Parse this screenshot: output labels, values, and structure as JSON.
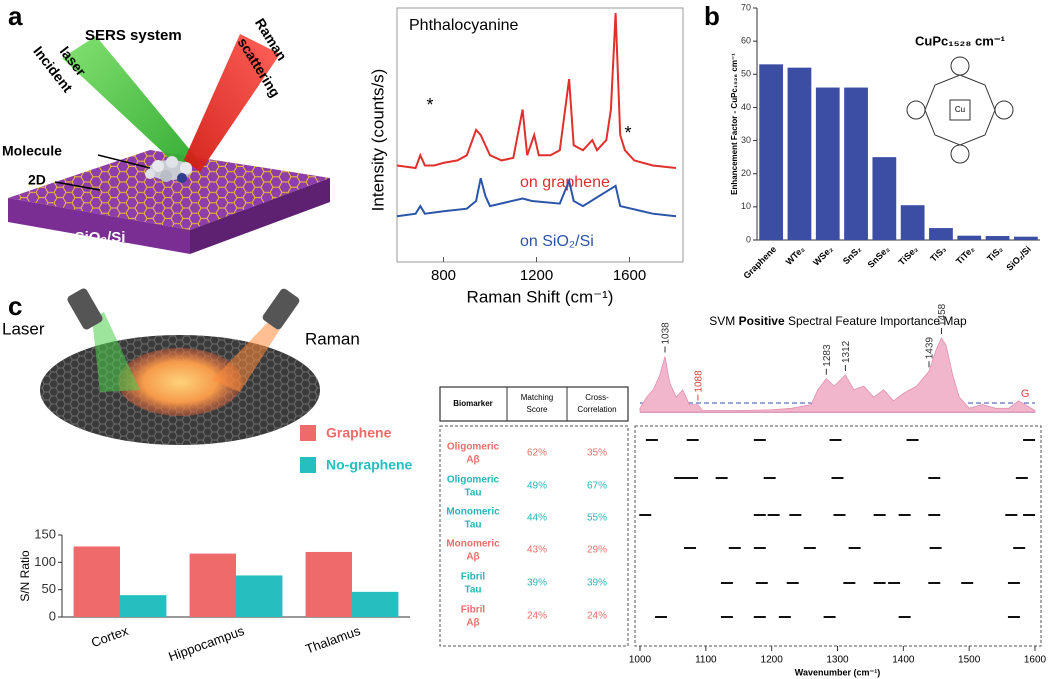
{
  "panel_labels": [
    "a",
    "b",
    "c"
  ],
  "sers_diagram": {
    "title": "SERS system",
    "incident": [
      "Incident",
      "laser"
    ],
    "scattering": [
      "Raman",
      "scattering"
    ],
    "molecule": "Molecule",
    "material": "2D",
    "substrate": "SiO₂/Si"
  },
  "brain_diagram": {
    "laser": "Laser",
    "raman": "Raman"
  },
  "molecule_center": "Cu",
  "table": {
    "header": [
      "Biomarker",
      [
        "Matching",
        "Score"
      ],
      [
        "Cross-",
        "Correlation"
      ]
    ],
    "rows": [
      {
        "biomarker": [
          "Oligomeric",
          "Aβ"
        ],
        "color": "#e8706a",
        "cells": [
          "62%",
          "35%"
        ]
      },
      {
        "biomarker": [
          "Oligomeric",
          "Tau"
        ],
        "color": "#2bb3bd",
        "cells": [
          "49%",
          "67%"
        ]
      },
      {
        "biomarker": [
          "Monomeric",
          "Tau"
        ],
        "color": "#2bb3bd",
        "cells": [
          "44%",
          "55%"
        ]
      },
      {
        "biomarker": [
          "Monomeric",
          "Aβ"
        ],
        "color": "#e8706a",
        "cells": [
          "43%",
          "29%"
        ]
      },
      {
        "biomarker": [
          "Fibril",
          "Tau"
        ],
        "color": "#2bb3bd",
        "cells": [
          "39%",
          "39%"
        ]
      },
      {
        "biomarker": [
          "Fibril",
          "Aβ"
        ],
        "color": "#e8706a",
        "cells": [
          "24%",
          "24%"
        ]
      }
    ]
  },
  "chart_data": [
    {
      "type": "line",
      "title": "Phthalocyanine",
      "x_label": "Raman Shift (cm⁻¹)",
      "y_label": "Intensity (counts/s)",
      "xlim": [
        600,
        1830
      ],
      "xticks": [
        800,
        1200,
        1600
      ],
      "ylim": [
        0,
        100
      ],
      "annotations": [
        "*",
        "*"
      ],
      "series": [
        {
          "name": "on graphene",
          "color": "#e0302c",
          "x": [
            600,
            680,
            700,
            720,
            760,
            800,
            860,
            900,
            940,
            960,
            1000,
            1050,
            1100,
            1140,
            1160,
            1190,
            1210,
            1260,
            1300,
            1340,
            1360,
            1400,
            1440,
            1460,
            1500,
            1520,
            1540,
            1560,
            1580,
            1620,
            1700,
            1800
          ],
          "values": [
            38,
            37,
            42,
            38,
            38,
            39,
            40,
            42,
            52,
            50,
            42,
            40,
            41,
            60,
            42,
            50,
            42,
            42,
            44,
            72,
            46,
            44,
            48,
            44,
            48,
            60,
            98,
            50,
            44,
            40,
            38,
            37
          ]
        },
        {
          "name": "on SiO₂/Si",
          "color": "#2a55a8",
          "x": [
            600,
            680,
            700,
            720,
            800,
            900,
            940,
            960,
            980,
            1000,
            1140,
            1180,
            1300,
            1340,
            1360,
            1400,
            1540,
            1560,
            1700,
            1800
          ],
          "values": [
            18,
            19,
            22,
            19,
            20,
            21,
            24,
            33,
            26,
            22,
            25,
            24,
            23,
            32,
            24,
            22,
            30,
            22,
            19,
            18
          ]
        }
      ]
    },
    {
      "type": "bar",
      "title": "CuPc₁₅₂₈ cm⁻¹",
      "y_label": "Enhancement Factor - CuPc₁₅₂₈ cm⁻¹",
      "categories": [
        "Graphene",
        "WTe₂",
        "WSe₂",
        "SnS₂",
        "SnSe₂",
        "TiSe₂",
        "TiS₃",
        "TiTe₂",
        "TiS₂",
        "SiO₂/Si"
      ],
      "values": [
        53,
        52,
        46,
        46,
        25,
        10.5,
        3.6,
        1.3,
        1.2,
        1.0
      ],
      "color": "#3b4ea3",
      "ylim": [
        0,
        70
      ],
      "yticks": [
        0,
        10,
        20,
        30,
        40,
        50,
        60,
        70
      ]
    },
    {
      "type": "bar",
      "y_label": "S/N Ratio",
      "categories": [
        "Cortex",
        "Hippocampus",
        "Thalamus"
      ],
      "series": [
        {
          "name": "Graphene",
          "color": "#ef6b6b",
          "values": [
            129,
            116,
            119
          ]
        },
        {
          "name": "No-graphene",
          "color": "#26bfbf",
          "values": [
            40,
            76,
            46
          ]
        }
      ],
      "ylim": [
        0,
        150
      ],
      "yticks": [
        0,
        50,
        100,
        150
      ]
    },
    {
      "type": "area",
      "title": [
        "SVM ",
        "Positive",
        " Spectral Feature Importance Map"
      ],
      "x_label": "Wavenumber (cm⁻¹)",
      "xlim": [
        1000,
        1600
      ],
      "xticks": [
        1000,
        1100,
        1200,
        1300,
        1400,
        1500,
        1600
      ],
      "ylim": [
        0,
        1
      ],
      "color": "#f2b6cc",
      "x": [
        1000,
        1010,
        1020,
        1030,
        1038,
        1045,
        1055,
        1065,
        1075,
        1088,
        1095,
        1150,
        1200,
        1230,
        1260,
        1270,
        1283,
        1295,
        1312,
        1325,
        1340,
        1355,
        1370,
        1385,
        1400,
        1420,
        1439,
        1450,
        1458,
        1465,
        1475,
        1485,
        1500,
        1520,
        1540,
        1560,
        1575,
        1585,
        1600
      ],
      "values": [
        0.05,
        0.2,
        0.3,
        0.5,
        0.75,
        0.4,
        0.2,
        0.3,
        0.1,
        0.1,
        0.02,
        0.02,
        0.03,
        0.05,
        0.1,
        0.3,
        0.45,
        0.35,
        0.5,
        0.3,
        0.35,
        0.2,
        0.3,
        0.15,
        0.25,
        0.35,
        0.55,
        0.85,
        1.0,
        0.9,
        0.5,
        0.2,
        0.05,
        0.1,
        0.05,
        0.05,
        0.15,
        0.1,
        0.02
      ],
      "peaks": [
        {
          "value": 1038,
          "color": "#333333"
        },
        {
          "value": 1088,
          "color": "#e0403a"
        },
        {
          "value": 1283,
          "color": "#333333"
        },
        {
          "value": 1312,
          "color": "#333333"
        },
        {
          "value": 1439,
          "color": "#333333"
        },
        {
          "value": 1458,
          "color": "#333333"
        }
      ],
      "band_label": {
        "text": "G",
        "x": 1585,
        "color": "#e0403a"
      },
      "feature_rows": [
        [
          1018,
          1080,
          1182,
          1297,
          1414,
          1591
        ],
        [
          1061,
          1079,
          1124,
          1197,
          1300,
          1447,
          1580
        ],
        [
          1008,
          1182,
          1203,
          1236,
          1303,
          1364,
          1402,
          1447,
          1564,
          1591
        ],
        [
          1076,
          1144,
          1182,
          1258,
          1326,
          1449,
          1576
        ],
        [
          1132,
          1185,
          1232,
          1318,
          1364,
          1386,
          1447,
          1497,
          1568
        ],
        [
          1032,
          1132,
          1182,
          1220,
          1288,
          1402,
          1568
        ]
      ]
    }
  ]
}
